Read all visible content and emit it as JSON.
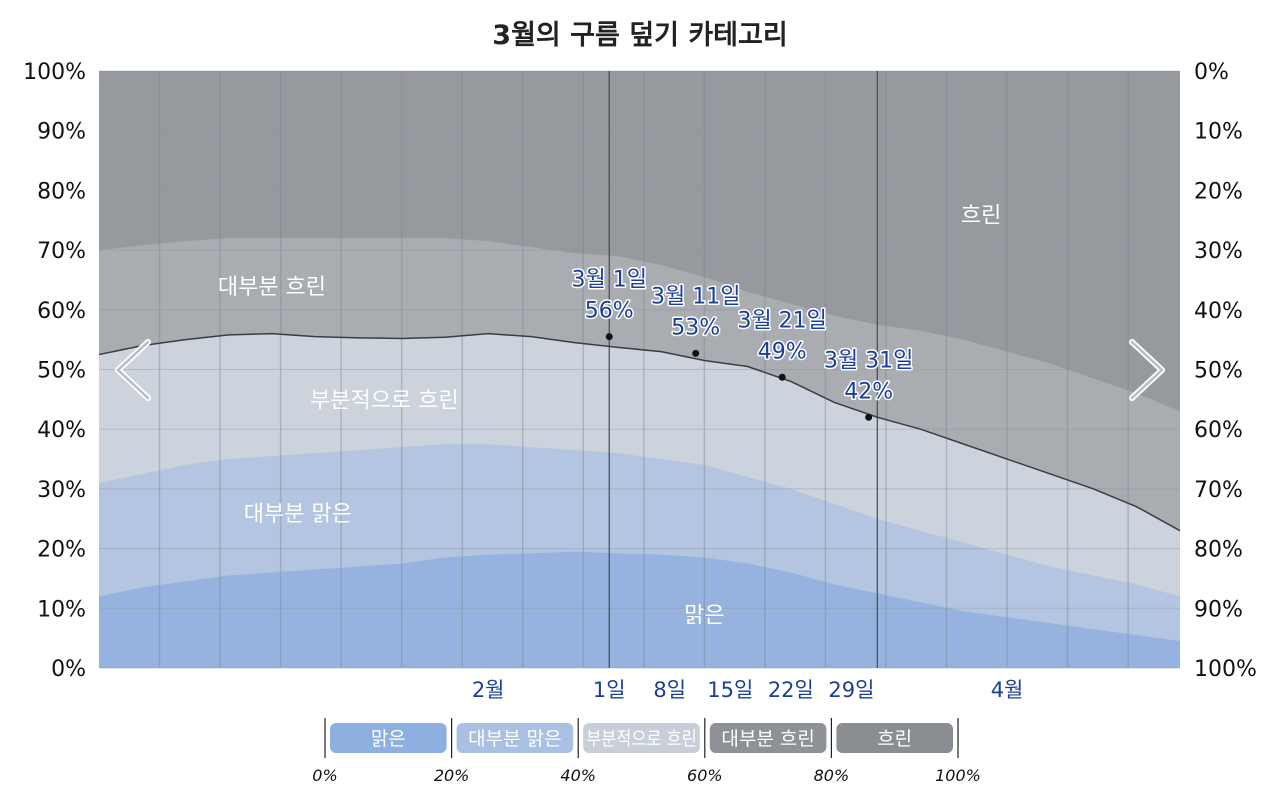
{
  "chart_data": {
    "type": "area",
    "title": "3월의 구름 덮기 카테고리",
    "y_left_ticks": [
      "0%",
      "10%",
      "20%",
      "30%",
      "40%",
      "50%",
      "60%",
      "70%",
      "80%",
      "90%",
      "100%"
    ],
    "y_right_ticks": [
      "100%",
      "90%",
      "80%",
      "70%",
      "60%",
      "50%",
      "40%",
      "30%",
      "20%",
      "10%",
      "0%"
    ],
    "ylim": [
      0,
      100
    ],
    "xlim_day": [
      1,
      126
    ],
    "x_ticks": [
      {
        "label": "2월",
        "day": 46
      },
      {
        "label": "1일",
        "day": 60
      },
      {
        "label": "8일",
        "day": 67
      },
      {
        "label": "15일",
        "day": 74
      },
      {
        "label": "22일",
        "day": 81
      },
      {
        "label": "29일",
        "day": 88
      },
      {
        "label": "4월",
        "day": 106
      }
    ],
    "month_bounds_day": [
      60,
      91
    ],
    "x_day": [
      1,
      6,
      11,
      16,
      21,
      26,
      31,
      36,
      41,
      46,
      51,
      56,
      61,
      66,
      71,
      76,
      81,
      86,
      91,
      96,
      101,
      106,
      111,
      116,
      121,
      126
    ],
    "series": [
      {
        "name": "맑은",
        "color": "#95b3de",
        "cumulative": [
          12,
          13.5,
          14.5,
          15.5,
          16,
          16.5,
          17,
          17.5,
          18.5,
          19,
          19.2,
          19.5,
          19.2,
          19,
          18.5,
          17.5,
          16,
          14,
          12.5,
          11,
          9.5,
          8.5,
          7.5,
          6.5,
          5.5,
          4.5
        ]
      },
      {
        "name": "대부분 맑은",
        "color": "#b3c5e0",
        "cumulative": [
          31,
          32.5,
          34,
          35,
          35.5,
          36,
          36.5,
          37,
          37.5,
          37.5,
          37,
          36.5,
          36,
          35,
          34,
          32,
          30,
          27.5,
          25,
          23,
          21,
          19,
          17,
          15.5,
          14,
          12
        ]
      },
      {
        "name": "부분적으로 흐린",
        "color": "#ccd3dd",
        "cumulative": [
          52.5,
          54,
          55,
          55.8,
          56,
          55.5,
          55.3,
          55.2,
          55.4,
          56,
          55.5,
          54.5,
          53.7,
          53,
          51.5,
          50.5,
          48,
          44.5,
          42,
          40,
          37.5,
          35,
          32.5,
          30,
          27,
          23
        ]
      },
      {
        "name": "대부분 흐린",
        "color": "#a9acb1",
        "cumulative": [
          70,
          70.8,
          71.5,
          72,
          72,
          72,
          72,
          72,
          72,
          71.5,
          70.5,
          69.5,
          69,
          67.5,
          65.5,
          63,
          61,
          59,
          57.5,
          56.5,
          55,
          53,
          51,
          48.5,
          46,
          43
        ]
      },
      {
        "name": "흐린",
        "color": "#96999e",
        "cumulative": [
          100,
          100,
          100,
          100,
          100,
          100,
          100,
          100,
          100,
          100,
          100,
          100,
          100,
          100,
          100,
          100,
          100,
          100,
          100,
          100,
          100,
          100,
          100,
          100,
          100,
          100
        ]
      }
    ],
    "region_labels": [
      {
        "text": "흐린",
        "day": 103,
        "value": 76
      },
      {
        "text": "대부분 흐린",
        "day": 21,
        "value": 64
      },
      {
        "text": "부분적으로 흐린",
        "day": 34,
        "value": 45
      },
      {
        "text": "대부분 맑은",
        "day": 24,
        "value": 26
      },
      {
        "text": "맑은",
        "day": 71,
        "value": 9
      }
    ],
    "annotations": [
      {
        "date": "3월 1일",
        "value": "56%",
        "day": 60,
        "y": 55.5
      },
      {
        "date": "3월 11일",
        "value": "53%",
        "day": 70,
        "y": 52.7
      },
      {
        "date": "3월 21일",
        "value": "49%",
        "day": 80,
        "y": 48.7
      },
      {
        "date": "3월 31일",
        "value": "42%",
        "day": 90,
        "y": 42
      }
    ],
    "legend": {
      "items": [
        "맑은",
        "대부분 맑은",
        "부분적으로 흐린",
        "대부분 흐린",
        "흐린"
      ],
      "ticks": [
        "0%",
        "20%",
        "40%",
        "60%",
        "80%",
        "100%"
      ]
    }
  }
}
